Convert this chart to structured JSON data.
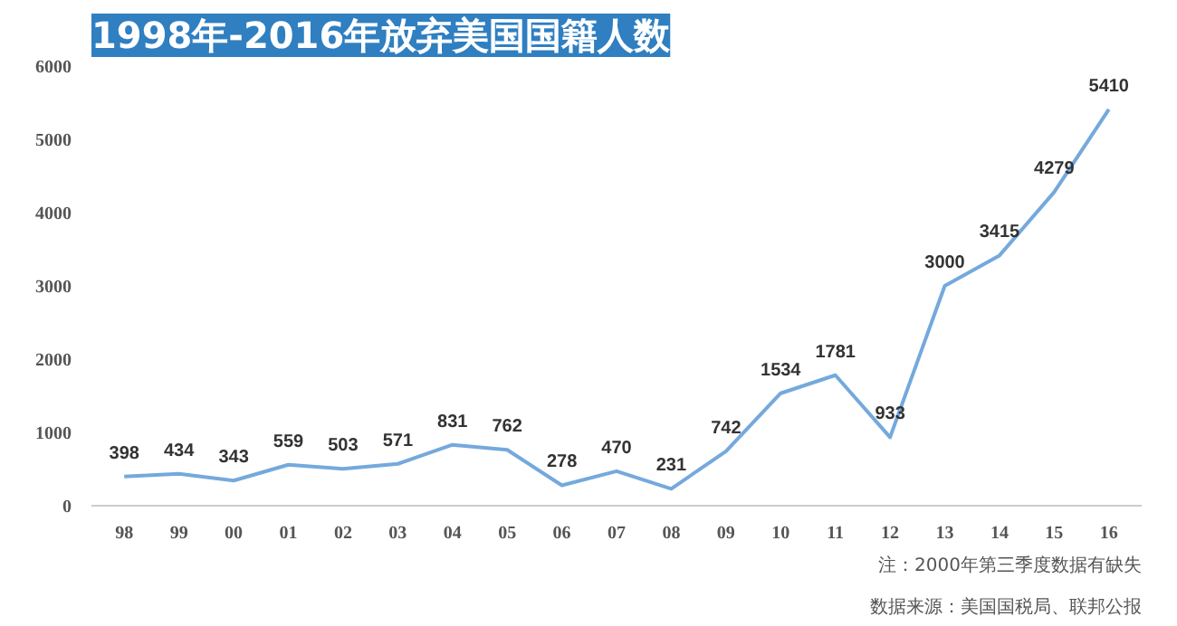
{
  "chart_data": {
    "type": "line",
    "title": "1998年-2016年放弃美国国籍人数",
    "categories": [
      "98",
      "99",
      "00",
      "01",
      "02",
      "03",
      "04",
      "05",
      "06",
      "07",
      "08",
      "09",
      "10",
      "11",
      "12",
      "13",
      "14",
      "15",
      "16"
    ],
    "series": [
      {
        "color": "#74a9dc",
        "values": [
          398,
          434,
          343,
          559,
          503,
          571,
          831,
          762,
          278,
          470,
          231,
          742,
          1534,
          1781,
          933,
          3000,
          3415,
          4279,
          5410
        ]
      }
    ],
    "ylim": [
      0,
      6000
    ],
    "yticks": [
      0,
      1000,
      2000,
      3000,
      4000,
      5000,
      6000
    ],
    "grid": false,
    "data_labels": true,
    "marker": "none",
    "line_style": "solid",
    "annotations": [
      "注：2000年第三季度数据有缺失",
      "数据来源：美国国税局、联邦公报"
    ]
  }
}
